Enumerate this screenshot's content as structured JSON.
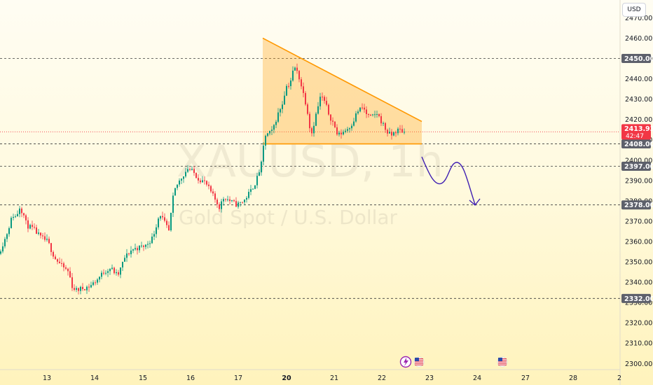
{
  "currency_label": "USD",
  "watermark": {
    "symbol": "XAUUSD, 1h",
    "description": "Gold Spot / U.S. Dollar"
  },
  "price_badge": {
    "price": "2413.93",
    "countdown": "42:47",
    "color": "#f23645"
  },
  "colors": {
    "up": "#089981",
    "down": "#f23645",
    "triangle": "#ff9800",
    "arrow": "#3f1fb2",
    "level_badge": "#5d606b"
  },
  "chart_data": {
    "type": "candlestick",
    "symbol": "XAUUSD",
    "timeframe": "1h",
    "ylim": [
      2297,
      2476
    ],
    "y_ticks": [
      2300,
      2310,
      2320,
      2330,
      2340,
      2350,
      2360,
      2370,
      2380,
      2390,
      2400,
      2410,
      2420,
      2430,
      2440,
      2450,
      2460,
      2470
    ],
    "x_ticks": [
      "13",
      "14",
      "15",
      "16",
      "17",
      "20",
      "21",
      "22",
      "23",
      "24",
      "27",
      "28",
      "2"
    ],
    "levels": [
      {
        "price": 2450.0,
        "label": "2450.00"
      },
      {
        "price": 2408.0,
        "label": "2408.00"
      },
      {
        "price": 2397.0,
        "label": "2397.00"
      },
      {
        "price": 2378.0,
        "label": "2378.00"
      },
      {
        "price": 2332.0,
        "label": "2332.00"
      }
    ],
    "last_price": 2413.93,
    "price_path": [
      [
        0,
        2354
      ],
      [
        10,
        2362
      ],
      [
        20,
        2373
      ],
      [
        25,
        2372
      ],
      [
        30,
        2377
      ],
      [
        35,
        2374
      ],
      [
        40,
        2368
      ],
      [
        50,
        2366
      ],
      [
        60,
        2362
      ],
      [
        70,
        2360
      ],
      [
        80,
        2352
      ],
      [
        90,
        2348
      ],
      [
        100,
        2345
      ],
      [
        105,
        2338
      ],
      [
        110,
        2336
      ],
      [
        120,
        2337
      ],
      [
        130,
        2338
      ],
      [
        140,
        2341
      ],
      [
        150,
        2345
      ],
      [
        160,
        2347
      ],
      [
        170,
        2343
      ],
      [
        180,
        2352
      ],
      [
        190,
        2356
      ],
      [
        200,
        2357
      ],
      [
        210,
        2358
      ],
      [
        220,
        2362
      ],
      [
        230,
        2374
      ],
      [
        237,
        2369
      ],
      [
        243,
        2365
      ],
      [
        250,
        2384
      ],
      [
        255,
        2388
      ],
      [
        262,
        2392
      ],
      [
        270,
        2396
      ],
      [
        278,
        2394
      ],
      [
        285,
        2391
      ],
      [
        295,
        2389
      ],
      [
        305,
        2383
      ],
      [
        315,
        2377
      ],
      [
        322,
        2382
      ],
      [
        330,
        2380
      ],
      [
        340,
        2378
      ],
      [
        350,
        2380
      ],
      [
        360,
        2385
      ],
      [
        368,
        2390
      ],
      [
        375,
        2398
      ],
      [
        380,
        2412
      ],
      [
        390,
        2414
      ],
      [
        398,
        2422
      ],
      [
        405,
        2428
      ],
      [
        410,
        2436
      ],
      [
        416,
        2438
      ],
      [
        422,
        2446
      ],
      [
        428,
        2442
      ],
      [
        434,
        2434
      ],
      [
        440,
        2426
      ],
      [
        446,
        2412
      ],
      [
        452,
        2421
      ],
      [
        460,
        2432
      ],
      [
        466,
        2428
      ],
      [
        472,
        2422
      ],
      [
        478,
        2418
      ],
      [
        484,
        2412
      ],
      [
        492,
        2414
      ],
      [
        500,
        2416
      ],
      [
        506,
        2419
      ],
      [
        512,
        2424
      ],
      [
        520,
        2426
      ],
      [
        526,
        2422
      ],
      [
        532,
        2421
      ],
      [
        540,
        2423
      ],
      [
        548,
        2418
      ],
      [
        554,
        2414
      ],
      [
        560,
        2412
      ],
      [
        566,
        2414
      ],
      [
        572,
        2415
      ],
      [
        578,
        2413.93
      ]
    ],
    "triangle": {
      "upper": [
        [
          375,
          2460
        ],
        [
          602,
          2419
        ]
      ],
      "lower": [
        [
          375,
          2408
        ],
        [
          602,
          2408
        ]
      ]
    }
  }
}
